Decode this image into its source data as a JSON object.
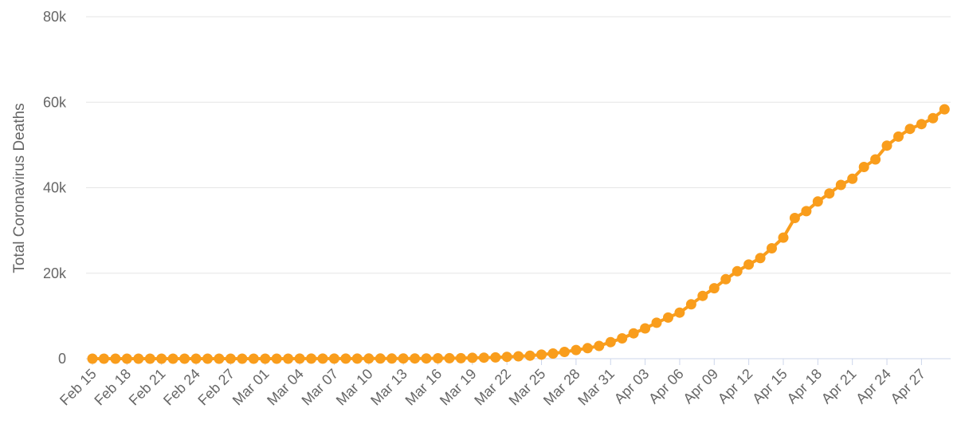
{
  "chart_data": {
    "type": "line",
    "title": "",
    "ylabel": "Total Coronavirus Deaths",
    "xlabel": "",
    "ylim": [
      0,
      80000
    ],
    "y_ticks": [
      0,
      20000,
      40000,
      60000,
      80000
    ],
    "y_tick_labels": [
      "0",
      "20k",
      "40k",
      "60k",
      "80k"
    ],
    "grid": true,
    "legend": "none",
    "color": "#f99d1c",
    "x_tick_labels": [
      "Feb 15",
      "Feb 18",
      "Feb 21",
      "Feb 24",
      "Feb 27",
      "Mar 01",
      "Mar 04",
      "Mar 07",
      "Mar 10",
      "Mar 13",
      "Mar 16",
      "Mar 19",
      "Mar 22",
      "Mar 25",
      "Mar 28",
      "Mar 31",
      "Apr 03",
      "Apr 06",
      "Apr 09",
      "Apr 12",
      "Apr 15",
      "Apr 18",
      "Apr 21",
      "Apr 24",
      "Apr 27"
    ],
    "x": [
      "Feb 15",
      "Feb 16",
      "Feb 17",
      "Feb 18",
      "Feb 19",
      "Feb 20",
      "Feb 21",
      "Feb 22",
      "Feb 23",
      "Feb 24",
      "Feb 25",
      "Feb 26",
      "Feb 27",
      "Feb 28",
      "Feb 29",
      "Mar 01",
      "Mar 02",
      "Mar 03",
      "Mar 04",
      "Mar 05",
      "Mar 06",
      "Mar 07",
      "Mar 08",
      "Mar 09",
      "Mar 10",
      "Mar 11",
      "Mar 12",
      "Mar 13",
      "Mar 14",
      "Mar 15",
      "Mar 16",
      "Mar 17",
      "Mar 18",
      "Mar 19",
      "Mar 20",
      "Mar 21",
      "Mar 22",
      "Mar 23",
      "Mar 24",
      "Mar 25",
      "Mar 26",
      "Mar 27",
      "Mar 28",
      "Mar 29",
      "Mar 30",
      "Mar 31",
      "Apr 01",
      "Apr 02",
      "Apr 03",
      "Apr 04",
      "Apr 05",
      "Apr 06",
      "Apr 07",
      "Apr 08",
      "Apr 09",
      "Apr 10",
      "Apr 11",
      "Apr 12",
      "Apr 13",
      "Apr 14",
      "Apr 15",
      "Apr 16",
      "Apr 17",
      "Apr 18",
      "Apr 19",
      "Apr 20",
      "Apr 21",
      "Apr 22",
      "Apr 23",
      "Apr 24",
      "Apr 25",
      "Apr 26",
      "Apr 27",
      "Apr 28",
      "Apr 29"
    ],
    "series": [
      {
        "values": [
          0,
          0,
          0,
          0,
          0,
          0,
          0,
          0,
          0,
          0,
          0,
          0,
          0,
          0,
          1,
          1,
          6,
          9,
          11,
          12,
          14,
          17,
          21,
          22,
          28,
          36,
          40,
          47,
          54,
          63,
          85,
          108,
          118,
          200,
          244,
          307,
          427,
          552,
          706,
          942,
          1209,
          1581,
          2026,
          2467,
          2978,
          3873,
          4757,
          5926,
          7087,
          8407,
          9619,
          10783,
          12722,
          14695,
          16478,
          18586,
          20463,
          22020,
          23529,
          25832,
          28325,
          32916,
          34522,
          36773,
          38664,
          40661,
          42094,
          44845,
          46622,
          49845,
          51949,
          53755,
          54881,
          56259,
          58355
        ]
      }
    ]
  }
}
